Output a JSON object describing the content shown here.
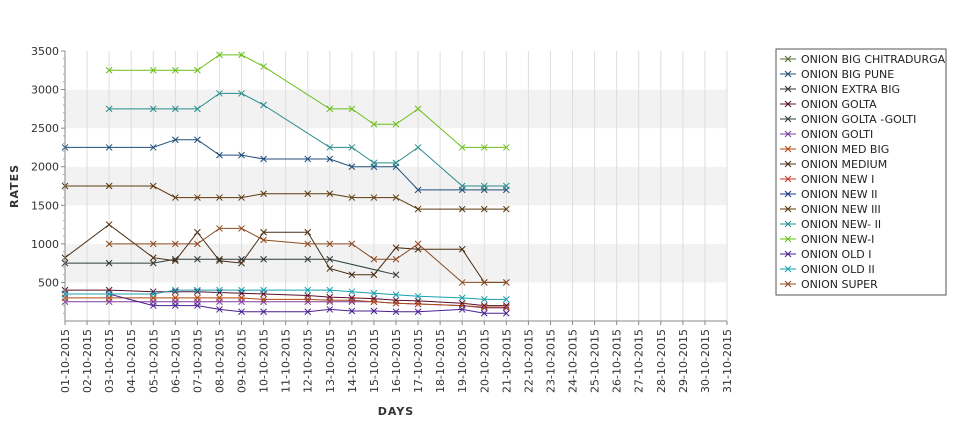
{
  "chart_data": {
    "type": "line",
    "title": "",
    "xlabel": "DAYS",
    "ylabel": "RATES",
    "ylim": [
      0,
      3500
    ],
    "yticks": [
      500,
      1000,
      1500,
      2000,
      2500,
      3000,
      3500
    ],
    "grid": "alternating horizontal bands",
    "legend_position": "right",
    "x": [
      "01-10-2015",
      "02-10-2015",
      "03-10-2015",
      "04-10-2015",
      "05-10-2015",
      "06-10-2015",
      "07-10-2015",
      "08-10-2015",
      "09-10-2015",
      "10-10-2015",
      "11-10-2015",
      "12-10-2015",
      "13-10-2015",
      "14-10-2015",
      "15-10-2015",
      "16-10-2015",
      "17-10-2015",
      "18-10-2015",
      "19-10-2015",
      "20-10-2015",
      "21-10-2015",
      "22-10-2015",
      "23-10-2015",
      "24-10-2015",
      "25-10-2015",
      "26-10-2015",
      "27-10-2015",
      "28-10-2015",
      "29-10-2015",
      "30-10-2015",
      "31-10-2015"
    ],
    "series": [
      {
        "name": "ONION BIG CHITRADURGA",
        "color": "#556b2f",
        "values": [
          null,
          null,
          null,
          null,
          null,
          null,
          null,
          null,
          null,
          null,
          null,
          null,
          null,
          null,
          null,
          null,
          null,
          null,
          null,
          null,
          null,
          null,
          null,
          null,
          null,
          null,
          null,
          null,
          null,
          null,
          null
        ]
      },
      {
        "name": "ONION BIG PUNE",
        "color": "#1f4e79",
        "values": [
          2250,
          null,
          2250,
          null,
          2250,
          2350,
          2350,
          2150,
          2150,
          2100,
          null,
          2100,
          2100,
          2000,
          2000,
          2000,
          1700,
          null,
          1700,
          1700,
          1700,
          null,
          null,
          null,
          null,
          null,
          null,
          null,
          null,
          null,
          null
        ]
      },
      {
        "name": "ONION EXTRA BIG",
        "color": "#333333",
        "values": [
          null,
          null,
          null,
          null,
          null,
          null,
          null,
          null,
          null,
          null,
          null,
          null,
          null,
          null,
          null,
          null,
          null,
          null,
          null,
          null,
          null,
          null,
          null,
          null,
          null,
          null,
          null,
          null,
          null,
          null,
          null
        ]
      },
      {
        "name": "ONION GOLTA",
        "color": "#5b0f2e",
        "values": [
          400,
          null,
          400,
          null,
          380,
          380,
          380,
          370,
          360,
          350,
          null,
          330,
          310,
          300,
          290,
          270,
          260,
          null,
          230,
          200,
          200,
          null,
          null,
          null,
          null,
          null,
          null,
          null,
          null,
          null,
          null
        ]
      },
      {
        "name": "ONION GOLTA -GOLTI",
        "color": "#2c3e3c",
        "values": [
          750,
          null,
          750,
          null,
          750,
          800,
          800,
          800,
          800,
          800,
          null,
          800,
          800,
          null,
          null,
          600,
          null,
          null,
          null,
          null,
          null,
          null,
          null,
          null,
          null,
          null,
          null,
          null,
          null,
          null,
          null
        ]
      },
      {
        "name": "ONION GOLTI",
        "color": "#7b3fa0",
        "values": [
          250,
          null,
          250,
          null,
          250,
          250,
          250,
          250,
          250,
          250,
          null,
          250,
          250,
          250,
          250,
          230,
          220,
          null,
          200,
          170,
          170,
          null,
          null,
          null,
          null,
          null,
          null,
          null,
          null,
          null,
          null
        ]
      },
      {
        "name": "ONION MED BIG",
        "color": "#b04a12",
        "values": [
          300,
          null,
          300,
          null,
          300,
          300,
          300,
          300,
          300,
          280,
          null,
          280,
          270,
          270,
          250,
          230,
          220,
          null,
          200,
          180,
          180,
          null,
          null,
          null,
          null,
          null,
          null,
          null,
          null,
          null,
          null
        ]
      },
      {
        "name": "ONION MEDIUM",
        "color": "#4a2e12",
        "values": [
          820,
          null,
          1250,
          null,
          820,
          780,
          1150,
          780,
          750,
          1150,
          null,
          1150,
          680,
          600,
          600,
          950,
          930,
          null,
          930,
          500,
          500,
          null,
          null,
          null,
          null,
          null,
          null,
          null,
          null,
          null,
          null
        ]
      },
      {
        "name": "ONION NEW I",
        "color": "#c0392b",
        "values": [
          null,
          null,
          null,
          null,
          null,
          null,
          null,
          null,
          null,
          null,
          null,
          null,
          null,
          null,
          null,
          null,
          null,
          null,
          null,
          null,
          null,
          null,
          null,
          null,
          null,
          null,
          null,
          null,
          null,
          null,
          null
        ]
      },
      {
        "name": "ONION NEW II",
        "color": "#1a3a8c",
        "values": [
          null,
          null,
          null,
          null,
          null,
          null,
          null,
          null,
          null,
          null,
          null,
          null,
          null,
          null,
          null,
          null,
          null,
          null,
          null,
          null,
          null,
          null,
          null,
          null,
          null,
          null,
          null,
          null,
          null,
          null,
          null
        ]
      },
      {
        "name": "ONION NEW III",
        "color": "#5c3a10",
        "values": [
          1750,
          null,
          1750,
          null,
          1750,
          1600,
          1600,
          1600,
          1600,
          1650,
          null,
          1650,
          1650,
          1600,
          1600,
          1600,
          1450,
          null,
          1450,
          1450,
          1450,
          null,
          null,
          null,
          null,
          null,
          null,
          null,
          null,
          null,
          null
        ]
      },
      {
        "name": "ONION NEW- II",
        "color": "#2a8c8c",
        "values": [
          null,
          null,
          2750,
          null,
          2750,
          2750,
          2750,
          2950,
          2950,
          2800,
          null,
          null,
          2250,
          2250,
          2050,
          2050,
          2250,
          null,
          1750,
          1750,
          1750,
          null,
          null,
          null,
          null,
          null,
          null,
          null,
          null,
          null,
          null
        ]
      },
      {
        "name": "ONION NEW-I",
        "color": "#6cbf1a",
        "values": [
          null,
          null,
          3250,
          null,
          3250,
          3250,
          3250,
          3450,
          3450,
          3300,
          null,
          null,
          2750,
          2750,
          2550,
          2550,
          2750,
          null,
          2250,
          2250,
          2250,
          null,
          null,
          null,
          null,
          null,
          null,
          null,
          null,
          null,
          null
        ]
      },
      {
        "name": "ONION OLD I",
        "color": "#4a2090",
        "values": [
          350,
          null,
          350,
          null,
          200,
          200,
          200,
          150,
          120,
          120,
          null,
          120,
          150,
          130,
          130,
          120,
          120,
          null,
          150,
          100,
          100,
          null,
          null,
          null,
          null,
          null,
          null,
          null,
          null,
          null,
          null
        ]
      },
      {
        "name": "ONION OLD II",
        "color": "#1aa0b0",
        "values": [
          350,
          null,
          350,
          null,
          350,
          400,
          400,
          400,
          400,
          400,
          null,
          400,
          400,
          380,
          360,
          340,
          320,
          null,
          300,
          280,
          280,
          null,
          null,
          null,
          null,
          null,
          null,
          null,
          null,
          null,
          null
        ]
      },
      {
        "name": "ONION SUPER",
        "color": "#8c4a20",
        "values": [
          null,
          null,
          1000,
          null,
          1000,
          1000,
          1000,
          1200,
          1200,
          1050,
          null,
          1000,
          1000,
          1000,
          800,
          800,
          1000,
          null,
          500,
          500,
          500,
          null,
          null,
          null,
          null,
          null,
          null,
          null,
          null,
          null,
          null
        ]
      }
    ]
  }
}
